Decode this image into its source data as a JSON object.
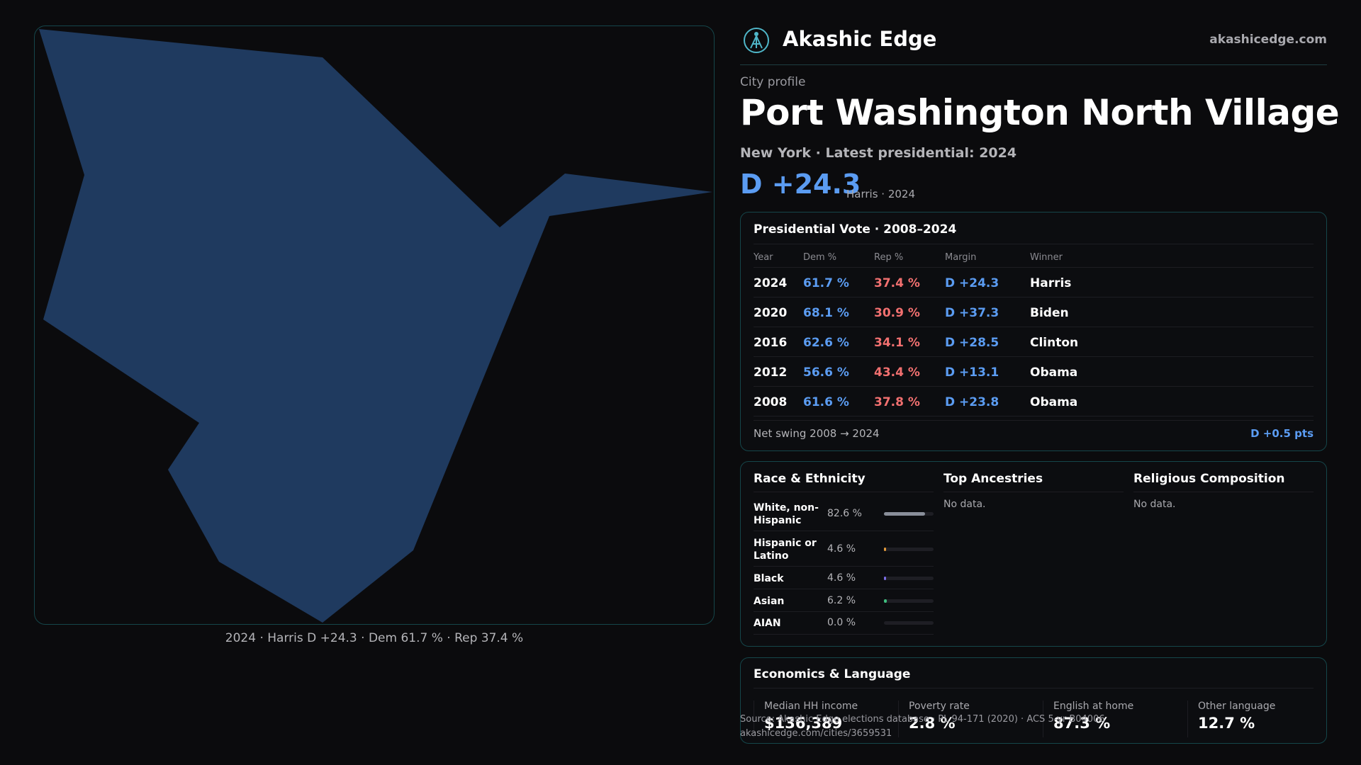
{
  "map": {
    "caption": "2024 · Harris D +24.3 · Dem 61.7 % · Rep 37.4 %",
    "fill_color": "#1f3a5f"
  },
  "header": {
    "brand": "Akashic Edge",
    "site": "akashicedge.com",
    "logo_icon": "akashic-logo-icon"
  },
  "profile": {
    "eyebrow": "City profile",
    "city": "Port Washington North Village",
    "subline": "New York  · Latest presidential: 2024",
    "margin": "D +24.3",
    "margin_note": "Harris · 2024"
  },
  "presidential": {
    "title": "Presidential Vote · 2008–2024",
    "columns": [
      "Year",
      "Dem %",
      "Rep %",
      "Margin",
      "Winner"
    ],
    "rows": [
      {
        "year": "2024",
        "dem": "61.7 %",
        "rep": "37.4 %",
        "margin": "D +24.3",
        "winner": "Harris"
      },
      {
        "year": "2020",
        "dem": "68.1 %",
        "rep": "30.9 %",
        "margin": "D +37.3",
        "winner": "Biden"
      },
      {
        "year": "2016",
        "dem": "62.6 %",
        "rep": "34.1 %",
        "margin": "D +28.5",
        "winner": "Clinton"
      },
      {
        "year": "2012",
        "dem": "56.6 %",
        "rep": "43.4 %",
        "margin": "D +13.1",
        "winner": "Obama"
      },
      {
        "year": "2008",
        "dem": "61.6 %",
        "rep": "37.8 %",
        "margin": "D +23.8",
        "winner": "Obama"
      }
    ],
    "swing_label": "Net swing 2008 → 2024",
    "swing_value": "D +0.5 pts"
  },
  "race": {
    "title": "Race & Ethnicity",
    "items": [
      {
        "label": "White, non-Hispanic",
        "pct": "82.6 %",
        "value": 82.6,
        "color": "#8a8f9a"
      },
      {
        "label": "Hispanic or Latino",
        "pct": "4.6 %",
        "value": 4.6,
        "color": "#e39a3b"
      },
      {
        "label": "Black",
        "pct": "4.6 %",
        "value": 4.6,
        "color": "#7c6ee6"
      },
      {
        "label": "Asian",
        "pct": "6.2 %",
        "value": 6.2,
        "color": "#3fbf7f"
      },
      {
        "label": "AIAN",
        "pct": "0.0 %",
        "value": 0.0,
        "color": "#cc6666"
      }
    ]
  },
  "ancestries": {
    "title": "Top Ancestries",
    "empty": "No data."
  },
  "religion": {
    "title": "Religious Composition",
    "empty": "No data."
  },
  "economics": {
    "title": "Economics & Language",
    "stats": [
      {
        "label": "Median HH income",
        "value": "$136,389"
      },
      {
        "label": "Poverty rate",
        "value": "2.8 %"
      },
      {
        "label": "English at home",
        "value": "87.3 %"
      },
      {
        "label": "Other language",
        "value": "12.7 %"
      }
    ]
  },
  "footer": {
    "source": "Source: Akashic Edge elections database · PL 94-171 (2020) · ACS 5-yr B04006",
    "url": "akashicedge.com/cities/3659531"
  }
}
